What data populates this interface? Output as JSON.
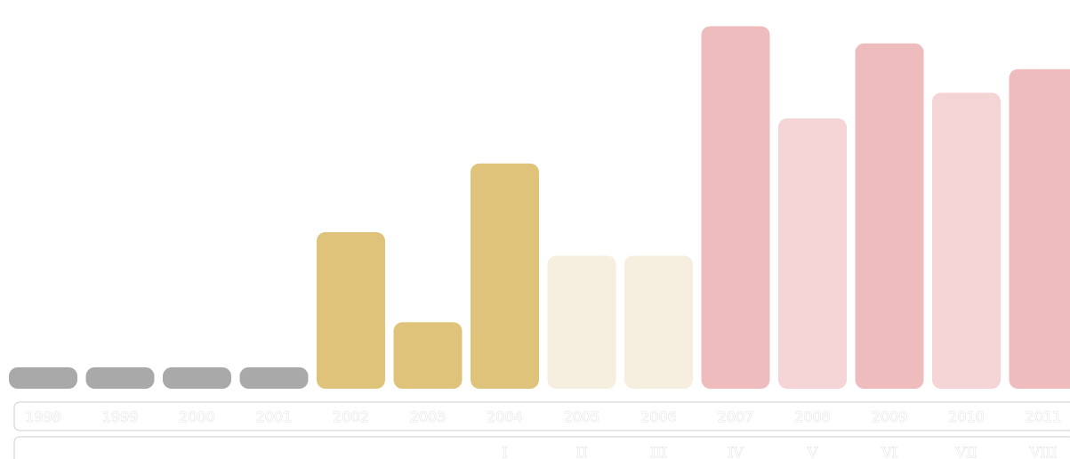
{
  "chart_data": {
    "type": "bar",
    "categories": [
      "1998",
      "1999",
      "2000",
      "2001",
      "2002",
      "2003",
      "2004",
      "2005",
      "2006",
      "2007",
      "2008",
      "2009",
      "2010",
      "2011"
    ],
    "values": [
      1.0,
      1.0,
      1.0,
      1.0,
      7.3,
      3.1,
      10.5,
      6.2,
      6.2,
      16.9,
      12.6,
      16.1,
      13.8,
      14.9
    ],
    "bar_colors": [
      "#a9a9a9",
      "#a9a9a9",
      "#a9a9a9",
      "#a9a9a9",
      "#dfc37a",
      "#dfc37a",
      "#dfc37a",
      "#f6eede",
      "#f6eede",
      "#efbcbe",
      "#f5d4d6",
      "#efbcbe",
      "#f5d4d6",
      "#efbcbe"
    ],
    "numerals": [
      "",
      "",
      "",
      "",
      "",
      "",
      "I",
      "II",
      "III",
      "IV",
      "V",
      "VI",
      "VII",
      "VIII"
    ],
    "ylim": [
      0,
      17.5
    ],
    "grid": false,
    "legend": "none",
    "title": "",
    "xlabel": "",
    "ylabel": ""
  }
}
